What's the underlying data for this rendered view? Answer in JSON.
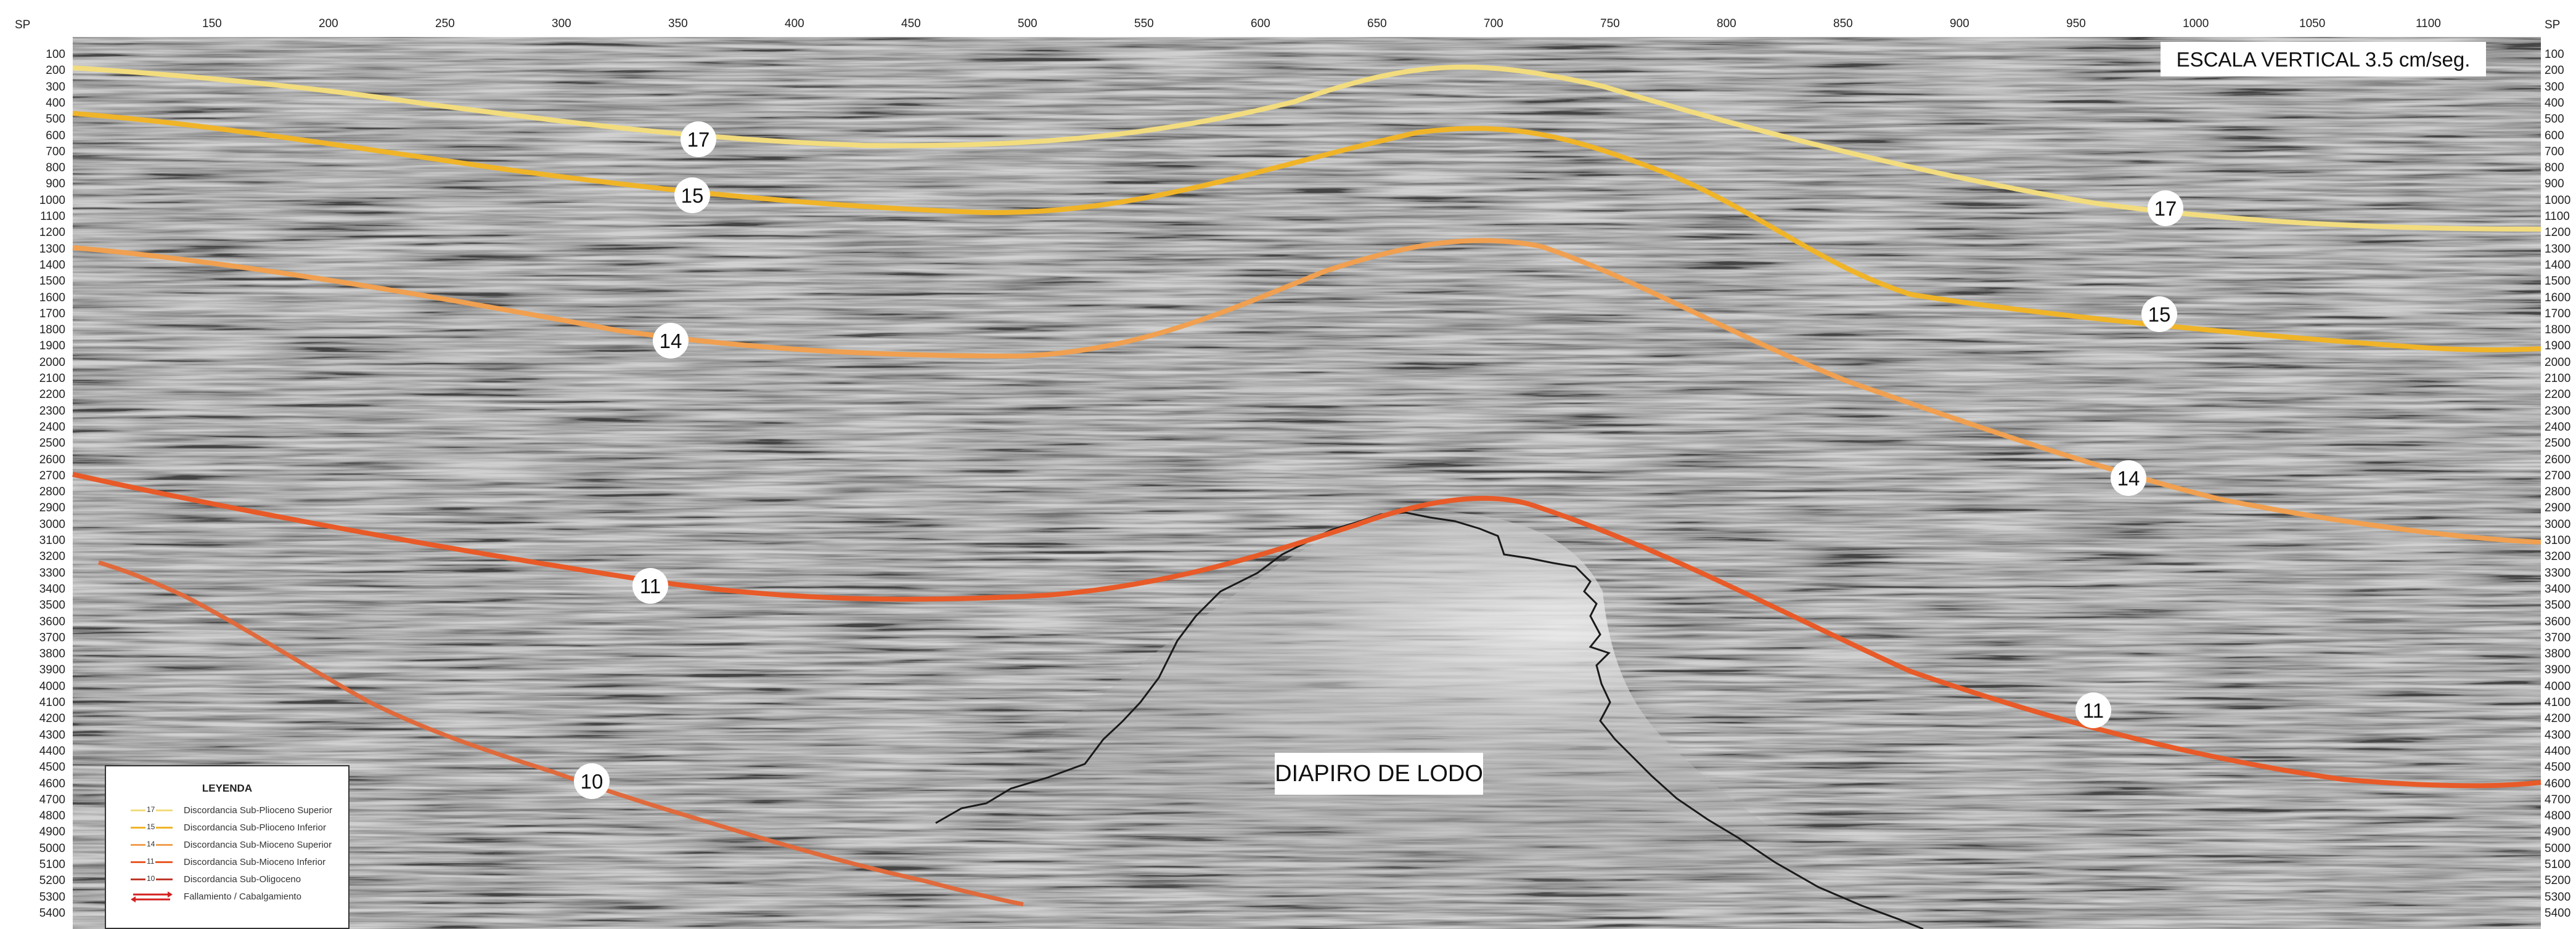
{
  "header": {
    "sp_label_left": "SP",
    "sp_label_right": "SP"
  },
  "top_axis_ticks": [
    "150",
    "200",
    "250",
    "300",
    "350",
    "400",
    "450",
    "500",
    "550",
    "600",
    "650",
    "700",
    "750",
    "800",
    "850",
    "900",
    "950",
    "1000",
    "1050",
    "1100"
  ],
  "side_axis_ticks": [
    "100",
    "200",
    "300",
    "400",
    "500",
    "600",
    "700",
    "800",
    "900",
    "1000",
    "1100",
    "1200",
    "1300",
    "1400",
    "1500",
    "1600",
    "1700",
    "1800",
    "1900",
    "2000",
    "2100",
    "2200",
    "2300",
    "2400",
    "2500",
    "2600",
    "2700",
    "2800",
    "2900",
    "3000",
    "3100",
    "3200",
    "3300",
    "3400",
    "3500",
    "3600",
    "3700",
    "3800",
    "3900",
    "4000",
    "4100",
    "4200",
    "4300",
    "4400",
    "4500",
    "4600",
    "4700",
    "4800",
    "4900",
    "5000",
    "5100",
    "5200",
    "5300",
    "5400"
  ],
  "scale_note": "ESCALA VERTICAL 3.5 cm/seg.",
  "feature_label": "DIAPIRO DE LODO",
  "horizons": [
    {
      "id": "17",
      "name": "Discordancia Sub-Plioceno Superior",
      "color": "#f2dc7e"
    },
    {
      "id": "15",
      "name": "Discordancia Sub-Plioceno Inferior",
      "color": "#f0b428"
    },
    {
      "id": "14",
      "name": "Discordancia Sub-Mioceno Superior",
      "color": "#f0a050"
    },
    {
      "id": "11",
      "name": "Discordancia Sub-Mioceno Inferior",
      "color": "#e85a28"
    },
    {
      "id": "10",
      "name": "Discordancia Sub-Oligoceno",
      "color": "#e06a3c"
    }
  ],
  "horizon_markers": [
    "17",
    "17",
    "15",
    "15",
    "14",
    "14",
    "11",
    "11",
    "10"
  ],
  "legend": {
    "title": "LEYENDA",
    "fault_label": "Fallamiento / Cabalgamiento",
    "fault_color": "#d42020"
  },
  "colors": {
    "background": "#9a9a9a",
    "diapir_outline": "#1a1a1a"
  }
}
